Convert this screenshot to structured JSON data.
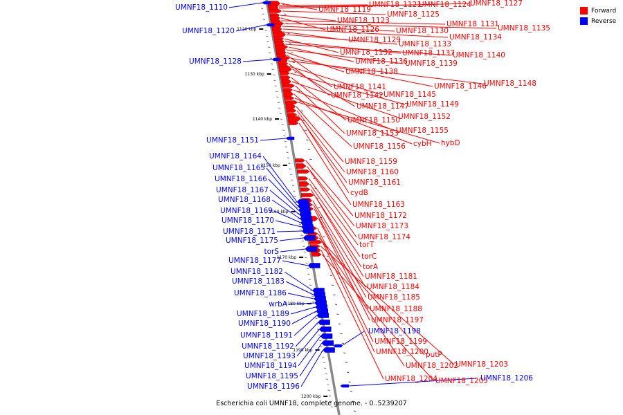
{
  "legend": {
    "forward_label": "Forward",
    "reverse_label": "Reverse",
    "forward_color": "#ff0000",
    "reverse_color": "#0000ff"
  },
  "caption": "Escherichia coli UMNF18, complete genome. - 0..5239207",
  "scale_labels": [
    "1120 kbp",
    "1130 kbp",
    "1140 kbp",
    "1150 kbp",
    "1160 kbp",
    "1170 kbp",
    "1180 kbp",
    "1190 kbp",
    "1200 kbp"
  ],
  "forward_genes": [
    "UMNF18_1119",
    "UMNF18_1121",
    "UMNF18_1124",
    "UMNF18_1127",
    "UMNF18_1125",
    "UMNF18_1123",
    "UMNF18_1126",
    "UMNF18_1131",
    "UMNF18_1135",
    "UMNF18_1130",
    "UMNF18_1134",
    "UMNF18_1129",
    "UMNF18_1133",
    "UMNF18_1132",
    "UMNF18_1137",
    "UMNF18_1140",
    "UMNF18_1136",
    "UMNF18_1139",
    "UMNF18_1138",
    "UMNF18_1141",
    "UMNF18_1146",
    "UMNF18_1148",
    "UMNF18_1142",
    "UMNF18_1145",
    "UMNF18_1147",
    "UMNF18_1149",
    "UMNF18_1150",
    "UMNF18_1152",
    "UMNF18_1153",
    "UMNF18_1155",
    "UMNF18_1156",
    "cybH",
    "hybD",
    "UMNF18_1159",
    "UMNF18_1160",
    "UMNF18_1161",
    "cydB",
    "UMNF18_1163",
    "UMNF18_1172",
    "UMNF18_1173",
    "UMNF18_1174",
    "torT",
    "torC",
    "torA",
    "UMNF18_1181",
    "UMNF18_1184",
    "UMNF18_1185",
    "UMNF18_1188",
    "UMNF18_1197",
    "UMNF18_1199",
    "UMNF18_1200",
    "putP",
    "UMNF18_1202",
    "UMNF18_1203",
    "UMNF18_1204",
    "UMNF18_1205"
  ],
  "reverse_genes": [
    "UMNF18_1110",
    "UMNF18_1120",
    "UMNF18_1128",
    "UMNF18_1151",
    "UMNF18_1164",
    "UMNF18_1165",
    "UMNF18_1166",
    "UMNF18_1167",
    "UMNF18_1168",
    "UMNF18_1169",
    "UMNF18_1170",
    "UMNF18_1171",
    "UMNF18_1175",
    "torS",
    "UMNF18_1177",
    "UMNF18_1182",
    "UMNF18_1183",
    "UMNF18_1186",
    "wrbA",
    "UMNF18_1189",
    "UMNF18_1190",
    "UMNF18_1191",
    "UMNF18_1192",
    "UMNF18_1193",
    "UMNF18_1194",
    "UMNF18_1195",
    "UMNF18_1196",
    "UMNF18_1198",
    "UMNF18_1206"
  ]
}
